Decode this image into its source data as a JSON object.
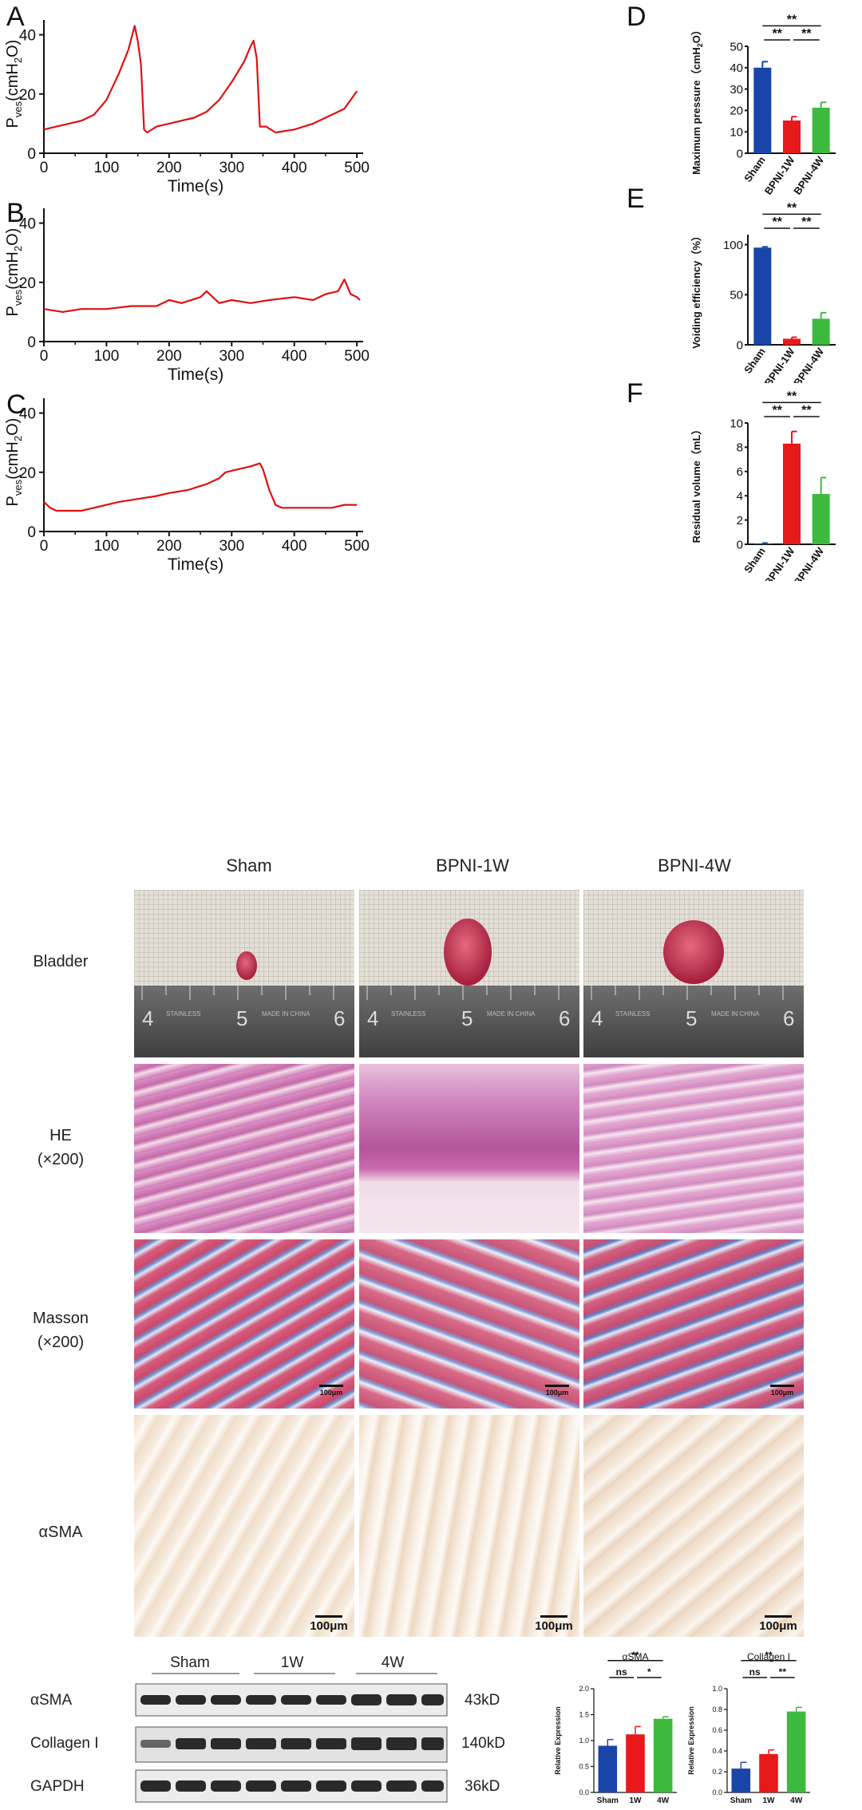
{
  "panel_letters": {
    "a": "A",
    "b": "B",
    "c": "C",
    "d": "D",
    "e": "E",
    "f": "F"
  },
  "colors": {
    "trace": "#e01010",
    "sham": "#1a45a8",
    "w1": "#e8191a",
    "w4": "#3dba3d"
  },
  "columns": [
    "Sham",
    "BPNI-1W",
    "BPNI-4W"
  ],
  "rows": {
    "bladder": "Bladder",
    "he_1": "HE",
    "he_2": "(×200)",
    "masson_1": "Masson",
    "masson_2": "(×200)",
    "asma": "αSMA"
  },
  "scalebar_label": "100μm",
  "ruler_labels": {
    "n4": "4",
    "n5": "5",
    "n6": "6",
    "brand1": "STAINLESS",
    "brand2": "MADE IN CHINA"
  },
  "western": {
    "groups": [
      "Sham",
      "1W",
      "4W"
    ],
    "bands": [
      {
        "name": "αSMA",
        "size": "43kD"
      },
      {
        "name": "Collagen I",
        "size": "140kD"
      },
      {
        "name": "GAPDH",
        "size": "36kD"
      }
    ]
  },
  "chart_data": [
    {
      "id": "A",
      "type": "line",
      "xlabel": "Time(s)",
      "ylabel": "P",
      "ylabel_sub": "ves",
      "ylabel_unit": "(cmH",
      "ylabel_unit_sub": "2",
      "ylabel_unit_end": "O)",
      "xlim": [
        0,
        510
      ],
      "ylim": [
        0,
        45
      ],
      "xticks": [
        0,
        100,
        200,
        300,
        400,
        500
      ],
      "yticks": [
        0,
        20,
        40
      ],
      "series": [
        {
          "x": [
            0,
            20,
            40,
            60,
            80,
            100,
            120,
            135,
            145,
            150,
            155,
            160,
            165,
            180,
            200,
            220,
            240,
            260,
            280,
            300,
            320,
            330,
            335,
            340,
            345,
            355,
            370,
            400,
            430,
            460,
            480,
            500
          ],
          "y": [
            8,
            9,
            10,
            11,
            13,
            18,
            27,
            35,
            43,
            38,
            30,
            8,
            7,
            9,
            10,
            11,
            12,
            14,
            18,
            24,
            31,
            36,
            38,
            32,
            9,
            9,
            7,
            8,
            10,
            13,
            15,
            21
          ]
        }
      ]
    },
    {
      "id": "B",
      "type": "line",
      "xlabel": "Time(s)",
      "ylabel": "P",
      "ylabel_sub": "ves",
      "ylabel_unit": "(cmH",
      "ylabel_unit_sub": "2",
      "ylabel_unit_end": "O)",
      "xlim": [
        0,
        510
      ],
      "ylim": [
        0,
        45
      ],
      "xticks": [
        0,
        100,
        200,
        300,
        400,
        500
      ],
      "yticks": [
        0,
        20,
        40
      ],
      "series": [
        {
          "x": [
            0,
            30,
            60,
            100,
            140,
            180,
            200,
            220,
            250,
            260,
            280,
            300,
            330,
            360,
            400,
            430,
            450,
            470,
            480,
            490,
            500,
            505
          ],
          "y": [
            11,
            10,
            11,
            11,
            12,
            12,
            14,
            13,
            15,
            17,
            13,
            14,
            13,
            14,
            15,
            14,
            16,
            17,
            21,
            16,
            15,
            14
          ]
        }
      ]
    },
    {
      "id": "C",
      "type": "line",
      "xlabel": "Time(s)",
      "ylabel": "P",
      "ylabel_sub": "ves",
      "ylabel_unit": "(cmH",
      "ylabel_unit_sub": "2",
      "ylabel_unit_end": "O)",
      "xlim": [
        0,
        510
      ],
      "ylim": [
        0,
        45
      ],
      "xticks": [
        0,
        100,
        200,
        300,
        400,
        500
      ],
      "yticks": [
        0,
        20,
        40
      ],
      "series": [
        {
          "x": [
            0,
            10,
            20,
            40,
            60,
            80,
            100,
            120,
            150,
            180,
            200,
            230,
            260,
            280,
            290,
            310,
            330,
            345,
            350,
            360,
            370,
            380,
            400,
            430,
            460,
            480,
            500
          ],
          "y": [
            10,
            8,
            7,
            7,
            7,
            8,
            9,
            10,
            11,
            12,
            13,
            14,
            16,
            18,
            20,
            21,
            22,
            23,
            21,
            14,
            9,
            8,
            8,
            8,
            8,
            9,
            9
          ]
        }
      ]
    },
    {
      "id": "D",
      "type": "bar",
      "ylabel": "Maximum pressure（cmH",
      "ylabel_sub": "2",
      "ylabel_end": "O）",
      "categories": [
        "Sham",
        "BPNI-1W",
        "BPNI-4W"
      ],
      "values": [
        40,
        15.3,
        21.3
      ],
      "errors": [
        2.8,
        1.8,
        2.5
      ],
      "ylim": [
        0,
        50
      ],
      "yticks": [
        0,
        10,
        20,
        30,
        40,
        50
      ],
      "sig": [
        {
          "from": 0,
          "to": 1,
          "label": "**"
        },
        {
          "from": 1,
          "to": 2,
          "label": "**"
        },
        {
          "from": 0,
          "to": 2,
          "label": "**"
        }
      ]
    },
    {
      "id": "E",
      "type": "bar",
      "ylabel": "Voiding efficiency（%）",
      "categories": [
        "Sham",
        "BPNI-1W",
        "BPNI-4W"
      ],
      "values": [
        97,
        6,
        26
      ],
      "errors": [
        0.8,
        1.5,
        6
      ],
      "ylim": [
        0,
        110
      ],
      "yticks": [
        0,
        50,
        100
      ],
      "sig": [
        {
          "from": 0,
          "to": 1,
          "label": "**"
        },
        {
          "from": 1,
          "to": 2,
          "label": "**"
        },
        {
          "from": 0,
          "to": 2,
          "label": "**"
        }
      ]
    },
    {
      "id": "F",
      "type": "bar",
      "ylabel": "Residual volume（mL）",
      "categories": [
        "Sham",
        "BPNI-1W",
        "BPNI-4W"
      ],
      "values": [
        0.05,
        8.3,
        4.15
      ],
      "errors": [
        0.05,
        1,
        1.35
      ],
      "ylim": [
        0,
        10
      ],
      "yticks": [
        0,
        2,
        4,
        6,
        8,
        10
      ],
      "sig": [
        {
          "from": 0,
          "to": 1,
          "label": "**"
        },
        {
          "from": 1,
          "to": 2,
          "label": "**"
        },
        {
          "from": 0,
          "to": 2,
          "label": "**"
        }
      ]
    },
    {
      "id": "aSMA-quant",
      "type": "bar",
      "title": "αSMA",
      "ylabel": "Relative Expression",
      "categories": [
        "Sham",
        "1W",
        "4W"
      ],
      "values": [
        0.9,
        1.12,
        1.42
      ],
      "errors": [
        0.12,
        0.15,
        0.04
      ],
      "ylim": [
        0,
        2
      ],
      "yticks": [
        0,
        0.5,
        1,
        1.5,
        2
      ],
      "ytick_labels": [
        "0.0",
        "0.5",
        "1.0",
        "1.5",
        "2.0"
      ],
      "sig": [
        {
          "from": 0,
          "to": 1,
          "label": "ns"
        },
        {
          "from": 1,
          "to": 2,
          "label": "*"
        },
        {
          "from": 0,
          "to": 2,
          "label": "**"
        }
      ]
    },
    {
      "id": "collagen-quant",
      "type": "bar",
      "title": "Collagen I",
      "ylabel": "Relative Expression",
      "categories": [
        "Sham",
        "1W",
        "4W"
      ],
      "values": [
        0.23,
        0.37,
        0.78
      ],
      "errors": [
        0.06,
        0.04,
        0.04
      ],
      "ylim": [
        0,
        1
      ],
      "yticks": [
        0,
        0.2,
        0.4,
        0.6,
        0.8,
        1
      ],
      "ytick_labels": [
        "0.0",
        "0.2",
        "0.4",
        "0.6",
        "0.8",
        "1.0"
      ],
      "sig": [
        {
          "from": 0,
          "to": 1,
          "label": "ns"
        },
        {
          "from": 1,
          "to": 2,
          "label": "**"
        },
        {
          "from": 0,
          "to": 2,
          "label": "**"
        }
      ]
    }
  ]
}
